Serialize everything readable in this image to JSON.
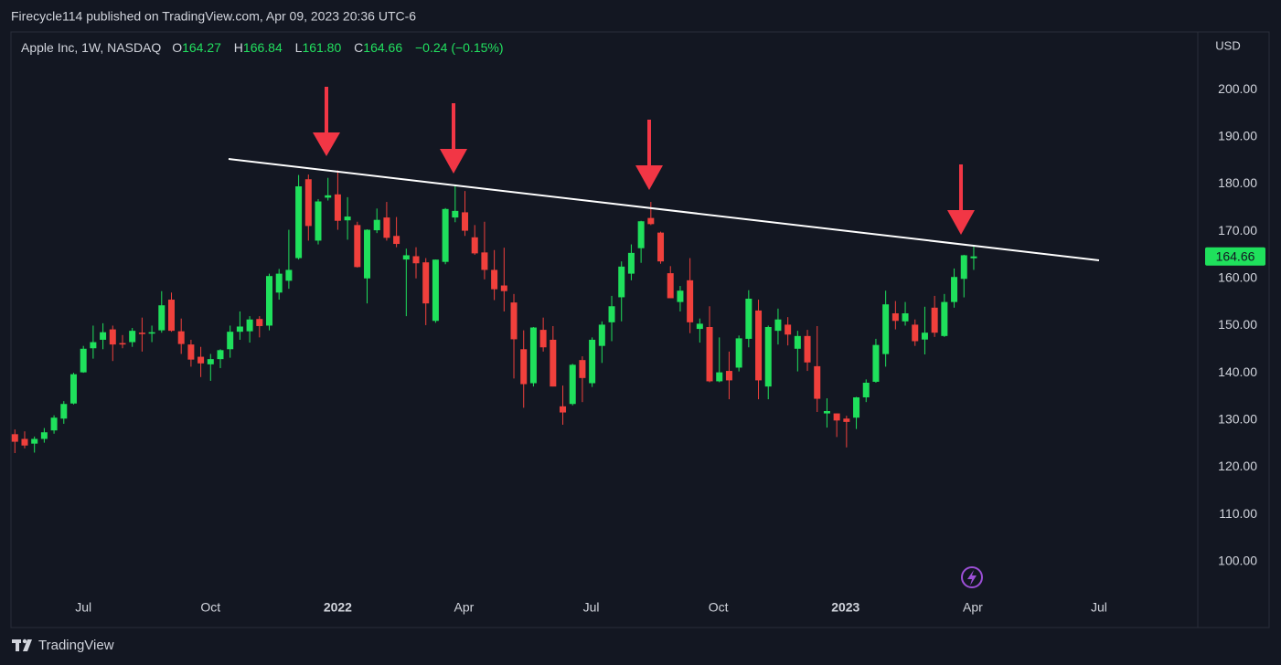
{
  "header": {
    "published": "Firecycle114 published on TradingView.com, Apr 09, 2023 20:36 UTC-6"
  },
  "legend": {
    "symbol": "Apple Inc, 1W, NASDAQ",
    "o_label": "O",
    "o": "164.27",
    "h_label": "H",
    "h": "166.84",
    "l_label": "L",
    "l": "161.80",
    "c_label": "C",
    "c": "164.66",
    "change": "−0.24 (−0.15%)"
  },
  "footer": "TradingView",
  "chart_data": {
    "type": "candlestick",
    "currency": "USD",
    "up_color": "#1fe05c",
    "down_color": "#f0403c",
    "ylim": [
      93.2,
      212.2
    ],
    "yticks": [
      {
        "value": 100,
        "label": "100.00"
      },
      {
        "value": 110,
        "label": "110.00"
      },
      {
        "value": 120,
        "label": "120.00"
      },
      {
        "value": 130,
        "label": "130.00"
      },
      {
        "value": 140,
        "label": "140.00"
      },
      {
        "value": 150,
        "label": "150.00"
      },
      {
        "value": 160,
        "label": "160.00"
      },
      {
        "value": 170,
        "label": "170.00"
      },
      {
        "value": 180,
        "label": "180.00"
      },
      {
        "value": 190,
        "label": "190.00"
      },
      {
        "value": 200,
        "label": "200.00"
      }
    ],
    "xlim": [
      -0.4,
      120.9
    ],
    "xticks": [
      {
        "value": 7,
        "label": "Jul"
      },
      {
        "value": 20,
        "label": "Oct"
      },
      {
        "value": 33,
        "label": "2022"
      },
      {
        "value": 45.9,
        "label": "Apr"
      },
      {
        "value": 58.9,
        "label": "Jul"
      },
      {
        "value": 71.9,
        "label": "Oct"
      },
      {
        "value": 84.9,
        "label": "2023"
      },
      {
        "value": 97.9,
        "label": "Apr"
      },
      {
        "value": 110.8,
        "label": "Jul"
      }
    ],
    "grid": false,
    "open": [
      127.0,
      126.0,
      125.0,
      126.0,
      127.8,
      130.3,
      133.5,
      140.1,
      145.2,
      147.0,
      149.2,
      146.3,
      146.5,
      148.5,
      148.3,
      149.0,
      155.5,
      148.8,
      146.0,
      143.4,
      141.8,
      142.9,
      145.0,
      148.7,
      148.8,
      151.4,
      150.0,
      157.0,
      159.5,
      164.3,
      181.0,
      168.0,
      177.1,
      177.8,
      172.3,
      171.3,
      160.0,
      170.2,
      172.9,
      169.0,
      164.0,
      164.7,
      163.4,
      151.0,
      163.5,
      172.9,
      174.0,
      168.7,
      165.5,
      161.8,
      158.5,
      154.9,
      145.0,
      137.8,
      149.1,
      147.0,
      132.9,
      133.4,
      142.7,
      137.8,
      145.7,
      150.7,
      156.0,
      161.0,
      166.4,
      172.8,
      169.7,
      161.1,
      155.0,
      159.6,
      149.3,
      149.7,
      138.2,
      140.4,
      141.1,
      147.2,
      153.2,
      137.1,
      148.9,
      150.2,
      145.1,
      147.8,
      141.4,
      131.4,
      131.4,
      130.3,
      130.5,
      134.8,
      138.1,
      143.97,
      152.6,
      150.9,
      150.2,
      147.05,
      153.8,
      147.8,
      155.0,
      159.9,
      164.27
    ],
    "high": [
      128.0,
      127.6,
      126.5,
      128.3,
      131.0,
      134.0,
      140.0,
      145.7,
      150.0,
      150.5,
      150.0,
      148.0,
      149.5,
      151.7,
      150.0,
      157.3,
      157.0,
      151.5,
      147.0,
      145.5,
      144.0,
      145.0,
      150.0,
      153.0,
      152.0,
      152.0,
      161.0,
      162.0,
      170.3,
      181.9,
      182.0,
      176.8,
      181.3,
      182.9,
      177.2,
      172.0,
      170.4,
      174.8,
      176.2,
      173.0,
      166.3,
      166.6,
      164.3,
      164.0,
      174.9,
      179.6,
      178.5,
      171.3,
      172.0,
      166.0,
      166.5,
      156.7,
      149.0,
      149.7,
      151.7,
      149.9,
      137.3,
      141.9,
      143.5,
      147.5,
      150.9,
      156.3,
      163.6,
      167.2,
      172.2,
      176.2,
      169.9,
      162.6,
      158.4,
      164.3,
      151.5,
      154.1,
      147.5,
      144.5,
      147.9,
      157.5,
      155.5,
      150.0,
      153.6,
      151.8,
      148.9,
      149.1,
      149.9,
      134.6,
      131.4,
      130.9,
      134.9,
      138.6,
      147.2,
      157.4,
      155.2,
      155.0,
      151.3,
      154.0,
      156.3,
      156.7,
      162.1,
      165.0,
      166.84
    ],
    "low": [
      123.0,
      124.0,
      123.1,
      125.2,
      127.1,
      129.2,
      133.3,
      140.0,
      143.0,
      145.0,
      142.5,
      145.2,
      145.5,
      144.5,
      146.5,
      148.5,
      148.7,
      144.0,
      141.3,
      139.1,
      138.3,
      141.0,
      143.2,
      147.0,
      146.4,
      147.5,
      149.0,
      155.5,
      157.8,
      164.0,
      168.0,
      167.2,
      176.5,
      170.3,
      168.2,
      162.3,
      154.7,
      169.6,
      168.0,
      166.6,
      152.0,
      160.0,
      150.1,
      150.6,
      163.0,
      171.9,
      169.0,
      165.0,
      159.8,
      155.4,
      153.0,
      138.8,
      132.6,
      137.1,
      144.5,
      137.1,
      129.0,
      133.1,
      133.8,
      137.0,
      142.1,
      146.7,
      150.9,
      159.6,
      163.3,
      171.3,
      163.1,
      155.8,
      153.0,
      148.4,
      146.4,
      138.0,
      138.0,
      134.4,
      140.3,
      145.4,
      134.4,
      134.4,
      146.0,
      145.8,
      140.3,
      140.4,
      131.7,
      128.4,
      126.4,
      124.2,
      128.1,
      133.8,
      137.9,
      141.3,
      149.2,
      150.0,
      145.7,
      143.9,
      147.6,
      147.6,
      153.8,
      155.98,
      161.8
    ],
    "close": [
      125.4,
      124.6,
      126.0,
      127.4,
      130.5,
      133.4,
      139.7,
      145.1,
      146.5,
      148.6,
      146.0,
      146.0,
      148.9,
      148.2,
      148.6,
      154.3,
      148.9,
      146.1,
      142.8,
      142.0,
      142.9,
      144.8,
      148.7,
      149.8,
      151.3,
      149.9,
      160.5,
      161.0,
      161.8,
      179.5,
      171.1,
      176.3,
      177.6,
      172.2,
      173.1,
      162.4,
      170.3,
      172.4,
      168.6,
      167.3,
      164.9,
      163.2,
      154.7,
      163.98,
      174.7,
      174.3,
      170.1,
      165.3,
      161.8,
      157.7,
      157.3,
      147.1,
      137.6,
      149.6,
      145.4,
      137.1,
      131.6,
      141.7,
      138.9,
      147.0,
      150.2,
      154.1,
      162.5,
      165.4,
      172.1,
      171.5,
      163.6,
      155.8,
      157.4,
      150.7,
      150.4,
      138.2,
      140.1,
      138.4,
      147.3,
      155.7,
      138.4,
      149.7,
      151.3,
      148.1,
      147.8,
      142.2,
      134.5,
      131.9,
      129.9,
      129.6,
      134.8,
      137.9,
      145.9,
      154.5,
      151.0,
      152.6,
      146.7,
      148.5,
      148.5,
      155.0,
      160.3,
      164.9,
      164.66
    ]
  }
}
